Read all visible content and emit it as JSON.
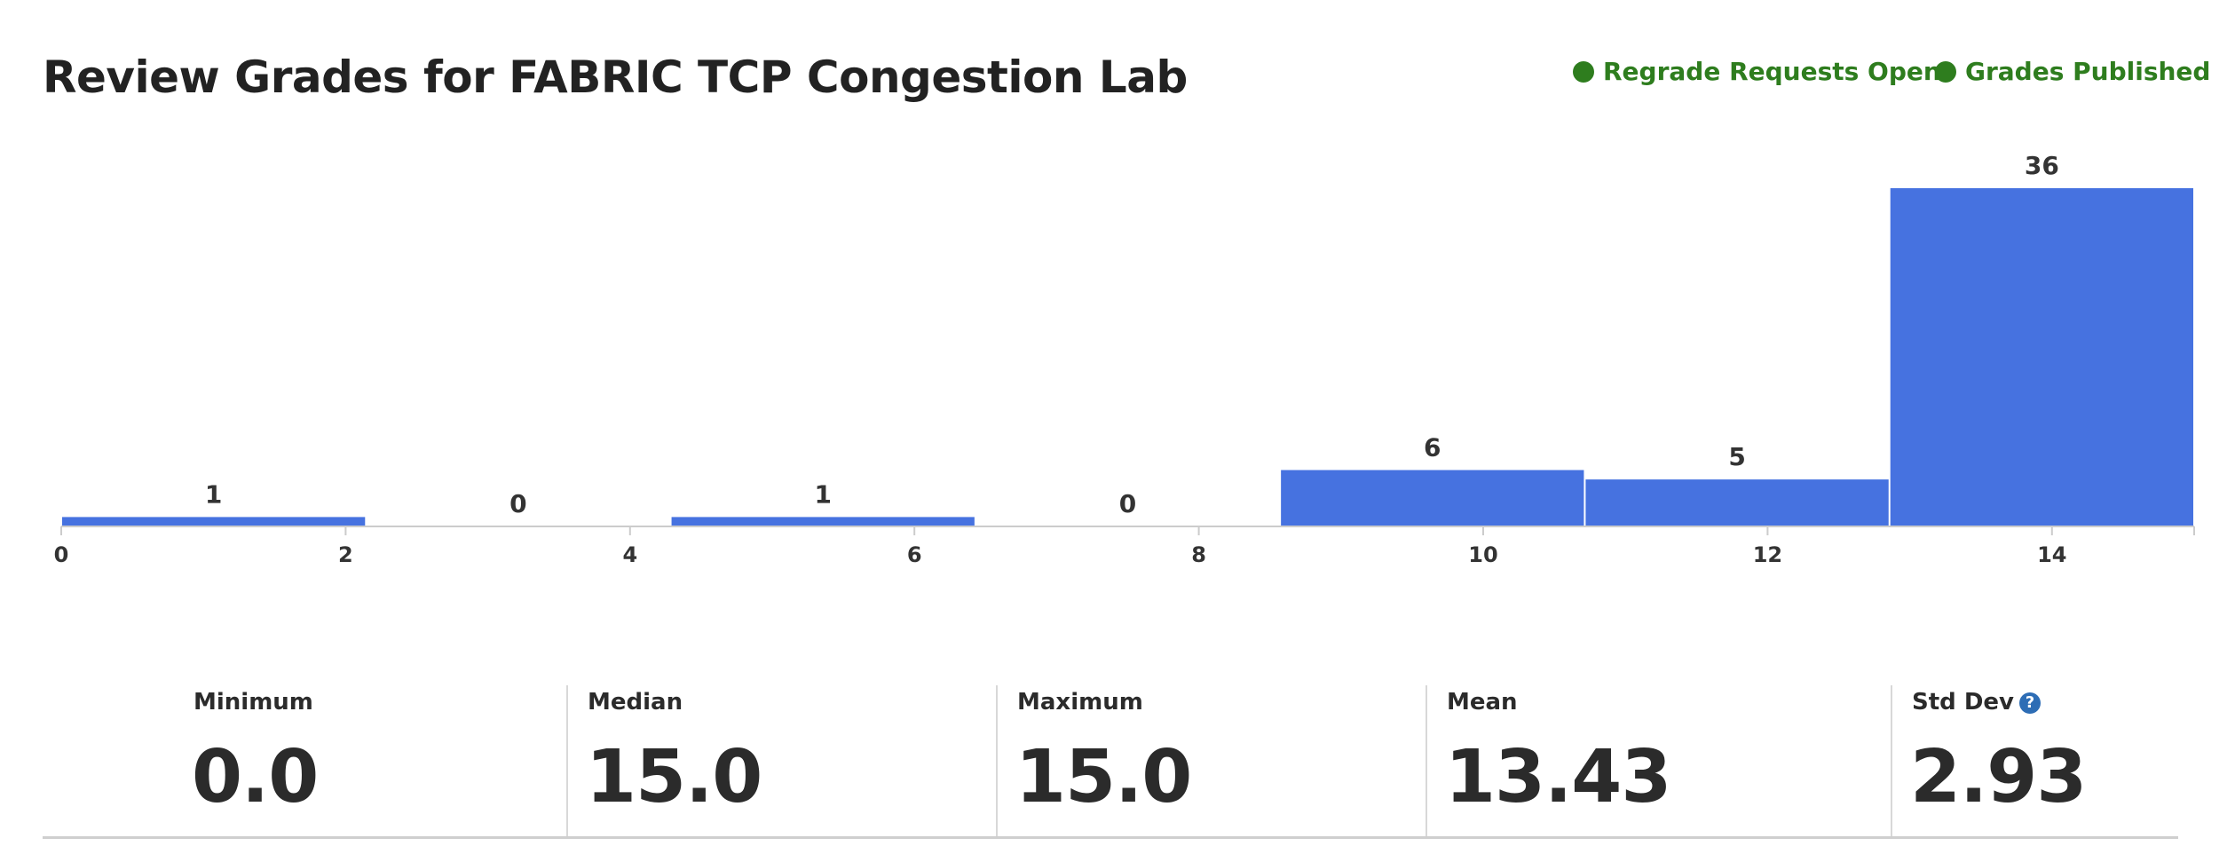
{
  "page": {
    "title": "Review Grades for FABRIC TCP Congestion Lab"
  },
  "status": [
    {
      "label": "Regrade Requests Open",
      "color": "#2e7d1e"
    },
    {
      "label": "Grades Published",
      "color": "#2e7d1e"
    }
  ],
  "chart_data": {
    "type": "bar",
    "bins": [
      {
        "from": 0,
        "to": 2.142857,
        "count": 1
      },
      {
        "from": 2.142857,
        "to": 4.285714,
        "count": 0
      },
      {
        "from": 4.285714,
        "to": 6.428571,
        "count": 1
      },
      {
        "from": 6.428571,
        "to": 8.571429,
        "count": 0
      },
      {
        "from": 8.571429,
        "to": 10.714286,
        "count": 6
      },
      {
        "from": 10.714286,
        "to": 12.857143,
        "count": 5
      },
      {
        "from": 12.857143,
        "to": 15,
        "count": 36
      }
    ],
    "values": [
      1,
      0,
      1,
      0,
      6,
      5,
      36
    ],
    "xticks": [
      0,
      2,
      4,
      6,
      8,
      10,
      12,
      14
    ],
    "xlim": [
      0,
      15
    ],
    "ylim": [
      0,
      36
    ],
    "grid": false,
    "bar_color": "#4672e0",
    "title": "",
    "xlabel": "",
    "ylabel": ""
  },
  "stats": [
    {
      "label": "Minimum",
      "value": "0.0"
    },
    {
      "label": "Median",
      "value": "15.0"
    },
    {
      "label": "Maximum",
      "value": "15.0"
    },
    {
      "label": "Mean",
      "value": "13.43"
    },
    {
      "label": "Std Dev",
      "value": "2.93",
      "help_icon": "help-icon",
      "help_glyph": "?"
    }
  ]
}
